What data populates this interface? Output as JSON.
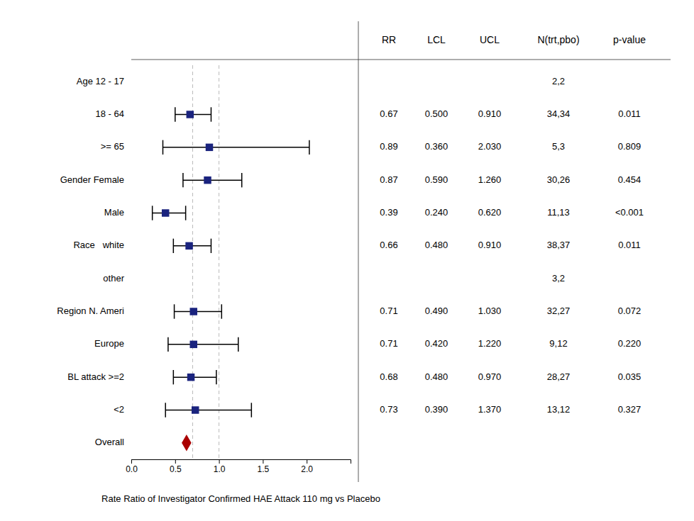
{
  "chart_data": {
    "type": "forest",
    "xlabel": "Rate Ratio of Investigator Confirmed HAE Attack 110 mg vs Placebo",
    "categories": [
      "Age 12 - 17",
      "18 - 64",
      ">= 65",
      "Gender Female",
      "Male",
      "Race   white",
      "other",
      "Region N. Ameri",
      "Europe",
      "BL attack >=2",
      "<2"
    ],
    "values": [
      null,
      0.67,
      0.89,
      0.87,
      0.39,
      0.66,
      null,
      0.71,
      0.71,
      0.68,
      0.73
    ],
    "lower": [
      null,
      0.5,
      0.36,
      0.59,
      0.24,
      0.48,
      null,
      0.49,
      0.42,
      0.48,
      0.39
    ],
    "upper": [
      null,
      0.91,
      2.03,
      1.26,
      0.62,
      0.91,
      null,
      1.03,
      1.22,
      0.97,
      1.37
    ],
    "lower_labels": [
      null,
      "0.500",
      "0.360",
      "0.590",
      "0.240",
      "0.480",
      null,
      "0.490",
      "0.420",
      "0.480",
      "0.390"
    ],
    "upper_labels": [
      null,
      "0.910",
      "2.030",
      "1.260",
      "0.620",
      "0.910",
      null,
      "1.030",
      "1.220",
      "0.970",
      "1.370"
    ],
    "n": [
      "2,2",
      "34,34",
      "5,3",
      "30,26",
      "11,13",
      "38,37",
      "3,2",
      "32,27",
      "9,12",
      "28,27",
      "13,12"
    ],
    "p_values": [
      null,
      "0.011",
      "0.809",
      "0.454",
      "<0.001",
      "0.011",
      null,
      "0.072",
      "0.220",
      "0.035",
      "0.327"
    ],
    "columns": [
      "RR",
      "LCL",
      "UCL",
      "N(trt,pbo)",
      "p-value"
    ],
    "overall": {
      "label": "Overall",
      "value": 0.63,
      "color": "#aa0000",
      "marker": "diamond"
    },
    "color": "#1a237e",
    "marker": "square",
    "reference_lines": [
      0.7,
      1
    ],
    "xlim": [
      0,
      2.5
    ],
    "xticks": [
      {
        "value": 0,
        "label": "0.0"
      },
      0.5,
      {
        "value": 1,
        "label": "1.0"
      },
      1.5,
      {
        "value": 2,
        "label": "2.0"
      }
    ],
    "grid": false
  }
}
